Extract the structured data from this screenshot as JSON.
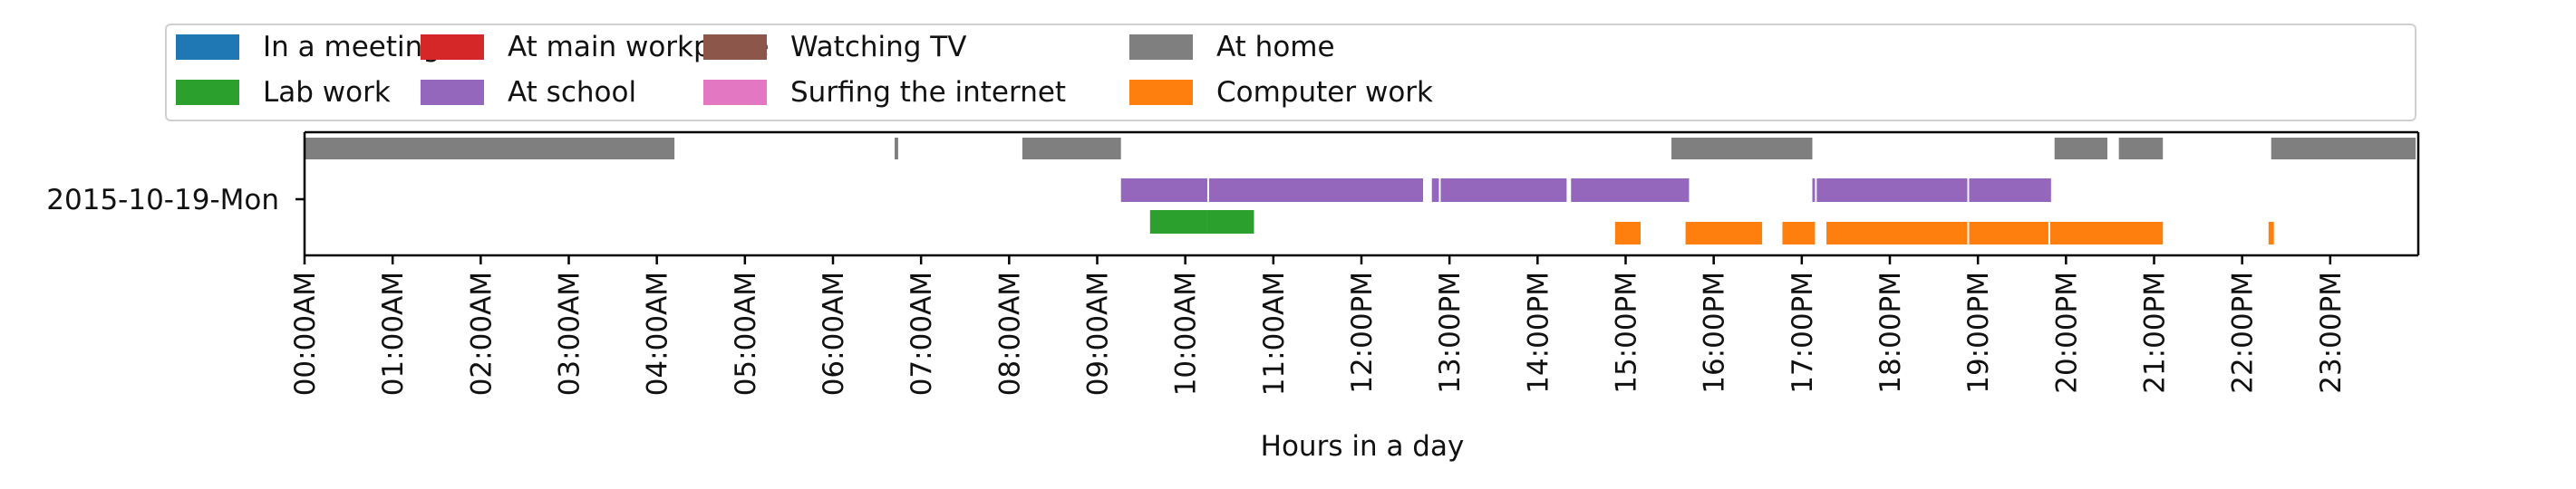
{
  "chart_data": {
    "type": "timeline",
    "xlabel": "Hours in a day",
    "row_label": "2015-10-19-Mon",
    "x_ticks": [
      "00:00AM",
      "01:00AM",
      "02:00AM",
      "03:00AM",
      "04:00AM",
      "05:00AM",
      "06:00AM",
      "07:00AM",
      "08:00AM",
      "09:00AM",
      "10:00AM",
      "11:00AM",
      "12:00PM",
      "13:00PM",
      "14:00PM",
      "15:00PM",
      "16:00PM",
      "17:00PM",
      "18:00PM",
      "19:00PM",
      "20:00PM",
      "21:00PM",
      "22:00PM",
      "23:00PM"
    ],
    "xlim": [
      0,
      24
    ],
    "legend_placement": "top",
    "series": [
      {
        "name": "In a meeting",
        "color": "#1f77b4",
        "lane": 0,
        "intervals": []
      },
      {
        "name": "Lab work",
        "color": "#2ca02c",
        "lane": 2,
        "intervals": [
          [
            9.6,
            10.25
          ],
          [
            10.25,
            10.78
          ]
        ]
      },
      {
        "name": "At main workplace",
        "color": "#d62728",
        "lane": 0,
        "intervals": []
      },
      {
        "name": "At school",
        "color": "#9467bd",
        "lane": 1,
        "intervals": [
          [
            9.27,
            10.25
          ],
          [
            10.27,
            12.7
          ],
          [
            12.8,
            12.88
          ],
          [
            12.9,
            14.33
          ],
          [
            14.38,
            15.72
          ],
          [
            17.12,
            17.15
          ],
          [
            17.17,
            18.88
          ],
          [
            18.9,
            19.83
          ]
        ]
      },
      {
        "name": "Watching TV",
        "color": "#8c564b",
        "lane": 0,
        "intervals": []
      },
      {
        "name": "Surfing the internet",
        "color": "#e377c2",
        "lane": 0,
        "intervals": []
      },
      {
        "name": "At home",
        "color": "#7f7f7f",
        "lane": 0,
        "intervals": [
          [
            0.0,
            4.2
          ],
          [
            6.7,
            6.74
          ],
          [
            8.15,
            9.27
          ],
          [
            15.52,
            17.12
          ],
          [
            19.87,
            20.47
          ],
          [
            20.6,
            21.1
          ],
          [
            22.33,
            23.97
          ]
        ]
      },
      {
        "name": "Computer work",
        "color": "#ff7f0e",
        "lane": 3,
        "intervals": [
          [
            14.88,
            15.17
          ],
          [
            15.68,
            16.55
          ],
          [
            16.78,
            17.15
          ],
          [
            17.28,
            18.88
          ],
          [
            18.9,
            19.8
          ],
          [
            19.82,
            21.1
          ],
          [
            22.3,
            22.36
          ]
        ]
      }
    ]
  }
}
